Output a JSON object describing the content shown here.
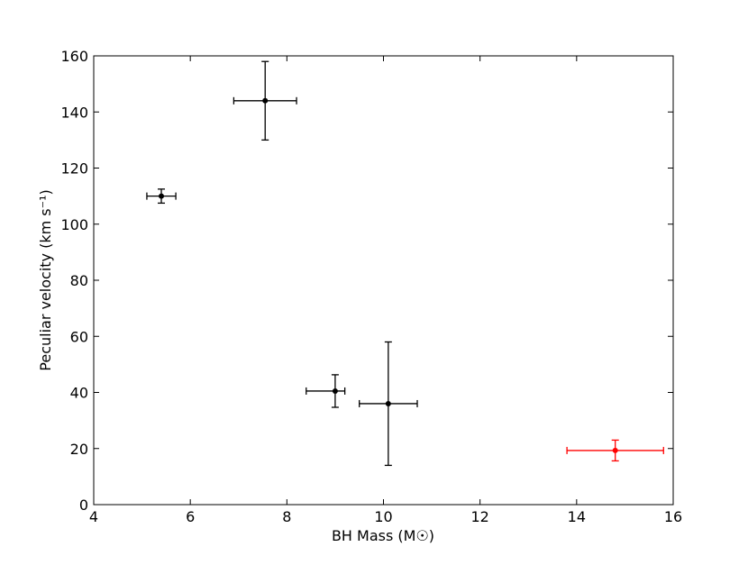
{
  "chart_data": {
    "type": "errorbar",
    "xlabel": "BH Mass (M☉)",
    "ylabel": "Peculiar velocity (km s⁻¹)",
    "xlim": [
      4,
      16
    ],
    "xticks": [
      4,
      6,
      8,
      10,
      12,
      14,
      16
    ],
    "ylim": [
      0,
      160
    ],
    "yticks": [
      0,
      20,
      40,
      60,
      80,
      100,
      120,
      140,
      160
    ],
    "series": [
      {
        "color": "#000000",
        "x": [
          5.4,
          7.55,
          9.0,
          10.1
        ],
        "values": [
          110,
          144,
          40.5,
          36
        ],
        "xerr_low": [
          0.3,
          0.65,
          0.6,
          0.6
        ],
        "xerr_high": [
          0.3,
          0.65,
          0.2,
          0.6
        ],
        "yerr": [
          2.5,
          14,
          5.8,
          22
        ]
      },
      {
        "color": "#ff0000",
        "x": [
          14.8
        ],
        "values": [
          19.3
        ],
        "xerr_low": [
          1.0
        ],
        "xerr_high": [
          1.0
        ],
        "yerr": [
          3.7
        ]
      }
    ]
  }
}
